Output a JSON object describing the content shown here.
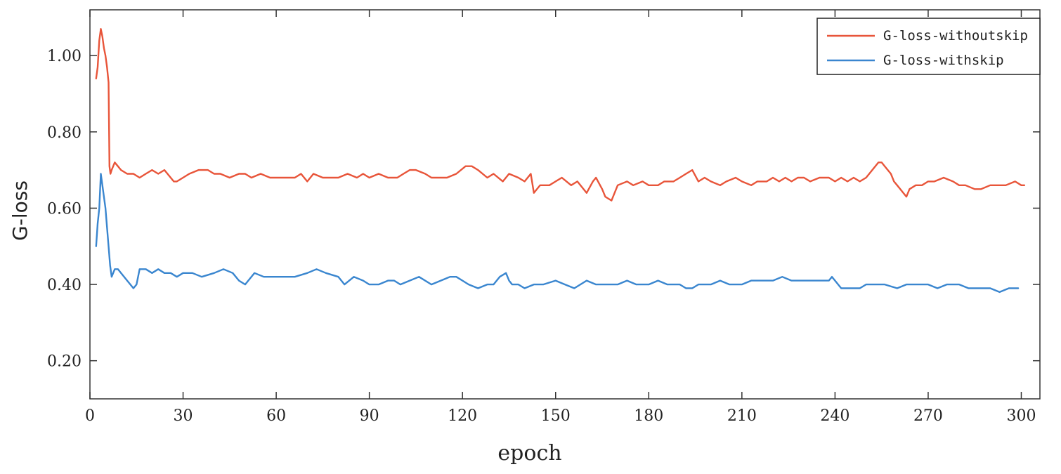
{
  "chart_data": {
    "type": "line",
    "xlabel": "epoch",
    "ylabel": "G-loss",
    "xlim": [
      0,
      306
    ],
    "ylim": [
      0.1,
      1.12
    ],
    "x_ticks": [
      0,
      30,
      60,
      90,
      120,
      150,
      180,
      210,
      240,
      270,
      300
    ],
    "x_tick_labels": [
      "0",
      "30",
      "60",
      "90",
      "120",
      "150",
      "180",
      "210",
      "240",
      "270",
      "300"
    ],
    "y_ticks": [
      0.2,
      0.4,
      0.6,
      0.8,
      1.0
    ],
    "y_tick_labels": [
      "0.20",
      "0.40",
      "0.60",
      "0.80",
      "1.00"
    ],
    "grid": false,
    "legend_position": "top-right",
    "series": [
      {
        "name": "G-loss-withoutskip",
        "color": "#e8553a",
        "x": [
          2,
          2.5,
          3,
          3.5,
          4,
          4.5,
          5,
          5.5,
          6,
          6.3,
          6.6,
          7,
          8,
          9,
          10,
          12,
          14,
          16,
          18,
          20,
          22,
          24,
          26,
          27,
          28,
          30,
          32,
          35,
          38,
          40,
          42,
          45,
          48,
          50,
          52,
          55,
          58,
          60,
          63,
          66,
          68,
          70,
          72,
          75,
          78,
          80,
          83,
          86,
          88,
          90,
          93,
          96,
          99,
          101,
          103,
          105,
          108,
          110,
          113,
          115,
          118,
          121,
          123,
          125,
          128,
          130,
          133,
          135,
          138,
          140,
          142,
          143,
          145,
          148,
          150,
          152,
          155,
          157,
          160,
          162,
          163,
          165,
          166,
          168,
          170,
          173,
          175,
          178,
          180,
          183,
          185,
          188,
          190,
          192,
          194,
          196,
          198,
          200,
          203,
          205,
          208,
          210,
          213,
          215,
          218,
          220,
          222,
          224,
          226,
          228,
          230,
          232,
          235,
          238,
          240,
          242,
          244,
          246,
          248,
          250,
          252,
          254,
          255,
          256,
          258,
          259,
          260,
          261,
          262,
          263,
          264,
          266,
          268,
          270,
          272,
          275,
          278,
          280,
          282,
          285,
          287,
          290,
          293,
          295,
          298,
          300,
          301
        ],
        "values": [
          0.94,
          0.97,
          1.04,
          1.07,
          1.05,
          1.02,
          1.0,
          0.97,
          0.93,
          0.71,
          0.69,
          0.7,
          0.72,
          0.71,
          0.7,
          0.69,
          0.69,
          0.68,
          0.69,
          0.7,
          0.69,
          0.7,
          0.68,
          0.67,
          0.67,
          0.68,
          0.69,
          0.7,
          0.7,
          0.69,
          0.69,
          0.68,
          0.69,
          0.69,
          0.68,
          0.69,
          0.68,
          0.68,
          0.68,
          0.68,
          0.69,
          0.67,
          0.69,
          0.68,
          0.68,
          0.68,
          0.69,
          0.68,
          0.69,
          0.68,
          0.69,
          0.68,
          0.68,
          0.69,
          0.7,
          0.7,
          0.69,
          0.68,
          0.68,
          0.68,
          0.69,
          0.71,
          0.71,
          0.7,
          0.68,
          0.69,
          0.67,
          0.69,
          0.68,
          0.67,
          0.69,
          0.64,
          0.66,
          0.66,
          0.67,
          0.68,
          0.66,
          0.67,
          0.64,
          0.67,
          0.68,
          0.65,
          0.63,
          0.62,
          0.66,
          0.67,
          0.66,
          0.67,
          0.66,
          0.66,
          0.67,
          0.67,
          0.68,
          0.69,
          0.7,
          0.67,
          0.68,
          0.67,
          0.66,
          0.67,
          0.68,
          0.67,
          0.66,
          0.67,
          0.67,
          0.68,
          0.67,
          0.68,
          0.67,
          0.68,
          0.68,
          0.67,
          0.68,
          0.68,
          0.67,
          0.68,
          0.67,
          0.68,
          0.67,
          0.68,
          0.7,
          0.72,
          0.72,
          0.71,
          0.69,
          0.67,
          0.66,
          0.65,
          0.64,
          0.63,
          0.65,
          0.66,
          0.66,
          0.67,
          0.67,
          0.68,
          0.67,
          0.66,
          0.66,
          0.65,
          0.65,
          0.66,
          0.66,
          0.66,
          0.67,
          0.66,
          0.66
        ]
      },
      {
        "name": "G-loss-withskip",
        "color": "#3a86cf",
        "x": [
          2,
          2.5,
          3,
          3.5,
          4,
          4.5,
          5,
          5.5,
          6,
          6.5,
          7,
          7.5,
          8,
          9,
          10,
          12,
          14,
          15,
          16,
          18,
          20,
          22,
          24,
          26,
          28,
          30,
          33,
          36,
          40,
          43,
          46,
          48,
          50,
          53,
          56,
          60,
          63,
          66,
          70,
          73,
          76,
          80,
          82,
          85,
          88,
          90,
          93,
          96,
          98,
          100,
          103,
          106,
          110,
          113,
          116,
          118,
          120,
          122,
          125,
          128,
          130,
          132,
          134,
          135,
          136,
          138,
          140,
          143,
          146,
          150,
          153,
          156,
          160,
          163,
          166,
          170,
          173,
          176,
          180,
          183,
          186,
          190,
          192,
          194,
          196,
          198,
          200,
          203,
          206,
          210,
          213,
          216,
          220,
          223,
          226,
          230,
          233,
          236,
          238,
          239,
          240,
          242,
          245,
          248,
          250,
          253,
          256,
          260,
          263,
          266,
          270,
          273,
          276,
          280,
          283,
          286,
          290,
          293,
          296,
          298,
          299
        ],
        "values": [
          0.5,
          0.56,
          0.6,
          0.69,
          0.66,
          0.63,
          0.6,
          0.55,
          0.5,
          0.45,
          0.42,
          0.43,
          0.44,
          0.44,
          0.43,
          0.41,
          0.39,
          0.4,
          0.44,
          0.44,
          0.43,
          0.44,
          0.43,
          0.43,
          0.42,
          0.43,
          0.43,
          0.42,
          0.43,
          0.44,
          0.43,
          0.41,
          0.4,
          0.43,
          0.42,
          0.42,
          0.42,
          0.42,
          0.43,
          0.44,
          0.43,
          0.42,
          0.4,
          0.42,
          0.41,
          0.4,
          0.4,
          0.41,
          0.41,
          0.4,
          0.41,
          0.42,
          0.4,
          0.41,
          0.42,
          0.42,
          0.41,
          0.4,
          0.39,
          0.4,
          0.4,
          0.42,
          0.43,
          0.41,
          0.4,
          0.4,
          0.39,
          0.4,
          0.4,
          0.41,
          0.4,
          0.39,
          0.41,
          0.4,
          0.4,
          0.4,
          0.41,
          0.4,
          0.4,
          0.41,
          0.4,
          0.4,
          0.39,
          0.39,
          0.4,
          0.4,
          0.4,
          0.41,
          0.4,
          0.4,
          0.41,
          0.41,
          0.41,
          0.42,
          0.41,
          0.41,
          0.41,
          0.41,
          0.41,
          0.42,
          0.41,
          0.39,
          0.39,
          0.39,
          0.4,
          0.4,
          0.4,
          0.39,
          0.4,
          0.4,
          0.4,
          0.39,
          0.4,
          0.4,
          0.39,
          0.39,
          0.39,
          0.38,
          0.39,
          0.39,
          0.39
        ]
      }
    ]
  }
}
